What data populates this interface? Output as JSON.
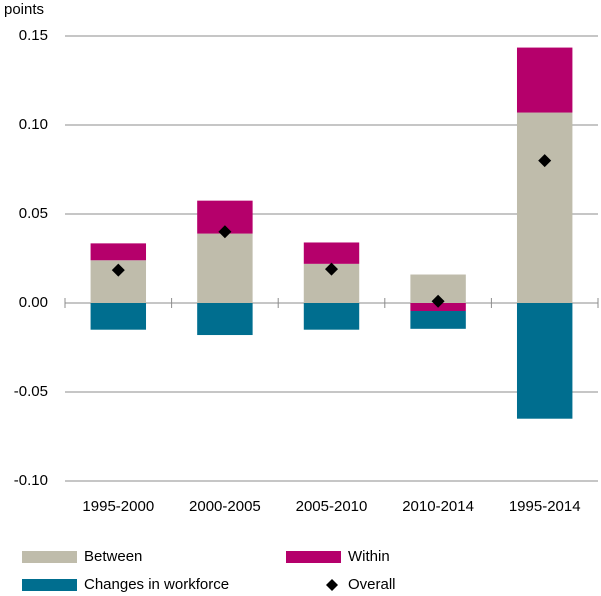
{
  "chart_data": {
    "type": "bar",
    "stacked": true,
    "y_label": "points",
    "categories": [
      "1995-2000",
      "2000-2005",
      "2005-2010",
      "2010-2014",
      "1995-2014"
    ],
    "series": [
      {
        "name": "Between",
        "color": "#bfbcab",
        "values": [
          0.024,
          0.039,
          0.022,
          0.016,
          0.107
        ]
      },
      {
        "name": "Within",
        "color": "#b5006b",
        "values": [
          0.0095,
          0.0185,
          0.012,
          -0.0045,
          0.0365
        ]
      },
      {
        "name": "Changes in workforce",
        "color": "#006e8f",
        "values": [
          -0.015,
          -0.018,
          -0.015,
          -0.01,
          -0.065
        ]
      }
    ],
    "overall": {
      "name": "Overall",
      "color": "#000000",
      "values": [
        0.0185,
        0.04,
        0.019,
        0.001,
        0.08
      ]
    },
    "ylim": [
      -0.1,
      0.15
    ],
    "yticks": [
      0.15,
      {
        "value": 0.1,
        "label": "0.10"
      },
      0.05,
      {
        "value": 0,
        "label": "0.00"
      },
      -0.05,
      {
        "value": -0.1,
        "label": "-0.10"
      }
    ],
    "grid": true
  }
}
